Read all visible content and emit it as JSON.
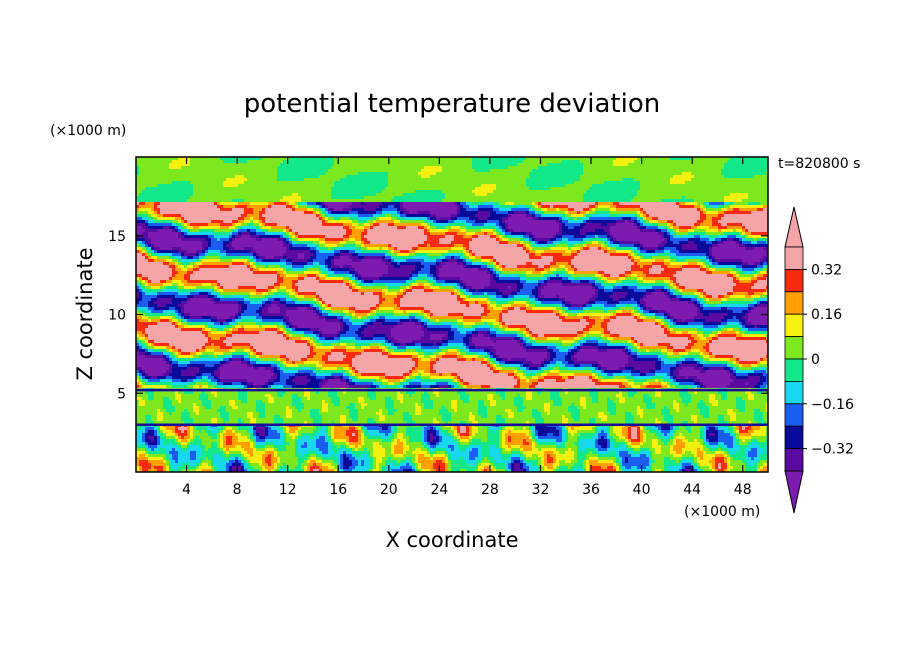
{
  "chart_data": {
    "type": "heatmap",
    "title": "potential temperature deviation",
    "xlabel": "X coordinate",
    "ylabel": "Z coordinate",
    "x_unit": "(×1000 m)",
    "y_unit": "(×1000 m)",
    "time_label": "t=820800 s",
    "xlim": [
      0,
      50
    ],
    "ylim": [
      0,
      20
    ],
    "x_ticks": [
      4,
      8,
      12,
      16,
      20,
      24,
      28,
      32,
      36,
      40,
      44,
      48
    ],
    "y_ticks": [
      5,
      10,
      15
    ],
    "colorbar": {
      "levels": [
        -0.4,
        -0.32,
        -0.24,
        -0.16,
        -0.08,
        0,
        0.08,
        0.16,
        0.24,
        0.32,
        0.4
      ],
      "tick_labels": [
        "0.32",
        "0.16",
        "0",
        "−0.16",
        "−0.32"
      ],
      "tick_values": [
        0.32,
        0.16,
        0,
        -0.16,
        -0.32
      ],
      "colors": [
        "#7d1ab0",
        "#5a0aa0",
        "#0a0a9a",
        "#1a5ef0",
        "#18d8f0",
        "#12e88a",
        "#7de81e",
        "#f6f010",
        "#ffa000",
        "#f82a10",
        "#f5a4a8",
        "#f5a4a8"
      ],
      "extend": "both"
    }
  }
}
